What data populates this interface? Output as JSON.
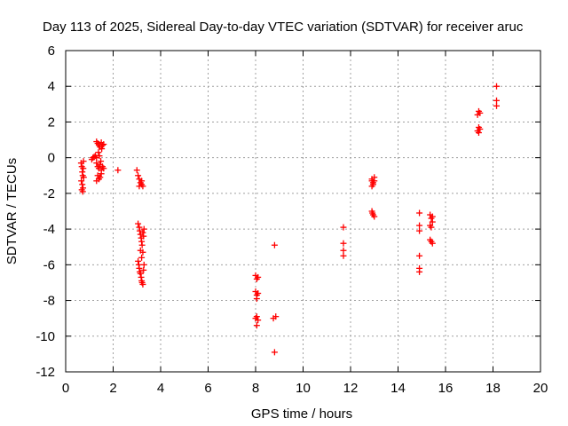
{
  "chart_data": {
    "type": "scatter",
    "title": "Day 113 of 2025, Sidereal Day-to-day VTEC variation (SDTVAR) for receiver aruc",
    "xlabel": "GPS time / hours",
    "ylabel": "SDTVAR / TECUs",
    "xlim": [
      0,
      20
    ],
    "ylim": [
      -12,
      6
    ],
    "xticks": [
      "0",
      "2",
      "4",
      "6",
      "8",
      "10",
      "12",
      "14",
      "16",
      "18",
      "20"
    ],
    "yticks": [
      "6",
      "4",
      "2",
      "0",
      "-2",
      "-4",
      "-6",
      "-8",
      "-10",
      "-12"
    ],
    "grid": true,
    "marker": "plus",
    "series": [
      {
        "name": "SDTVAR",
        "color": "#ff0000",
        "points": [
          [
            0.65,
            -0.3
          ],
          [
            0.68,
            -0.5
          ],
          [
            0.7,
            -0.8
          ],
          [
            0.72,
            -1.0
          ],
          [
            0.66,
            -1.3
          ],
          [
            0.7,
            -1.5
          ],
          [
            0.68,
            -1.8
          ],
          [
            0.72,
            -1.9
          ],
          [
            0.75,
            -0.2
          ],
          [
            0.74,
            -0.6
          ],
          [
            0.76,
            -1.1
          ],
          [
            0.73,
            -1.7
          ],
          [
            1.1,
            -0.1
          ],
          [
            1.15,
            0.0
          ],
          [
            1.2,
            0.05
          ],
          [
            1.25,
            0.1
          ],
          [
            1.3,
            0.0
          ],
          [
            1.3,
            0.9
          ],
          [
            1.35,
            0.8
          ],
          [
            1.4,
            0.7
          ],
          [
            1.45,
            0.6
          ],
          [
            1.5,
            0.85
          ],
          [
            1.55,
            0.7
          ],
          [
            1.6,
            0.75
          ],
          [
            1.3,
            -0.3
          ],
          [
            1.35,
            -0.5
          ],
          [
            1.4,
            -0.6
          ],
          [
            1.45,
            -0.4
          ],
          [
            1.5,
            -0.7
          ],
          [
            1.55,
            -0.5
          ],
          [
            1.6,
            -0.6
          ],
          [
            1.35,
            -1.0
          ],
          [
            1.4,
            -1.2
          ],
          [
            1.45,
            -1.1
          ],
          [
            1.5,
            -0.9
          ],
          [
            1.3,
            -1.3
          ],
          [
            1.38,
            0.3
          ],
          [
            1.42,
            0.1
          ],
          [
            1.48,
            -0.2
          ],
          [
            1.52,
            0.5
          ],
          [
            2.2,
            -0.7
          ],
          [
            3.0,
            -0.7
          ],
          [
            3.05,
            -1.0
          ],
          [
            3.1,
            -1.2
          ],
          [
            3.15,
            -1.4
          ],
          [
            3.2,
            -1.5
          ],
          [
            3.25,
            -1.6
          ],
          [
            3.1,
            -1.6
          ],
          [
            3.2,
            -1.3
          ],
          [
            3.05,
            -3.7
          ],
          [
            3.1,
            -3.9
          ],
          [
            3.12,
            -4.1
          ],
          [
            3.15,
            -4.3
          ],
          [
            3.18,
            -4.5
          ],
          [
            3.2,
            -4.7
          ],
          [
            3.22,
            -4.9
          ],
          [
            3.25,
            -4.2
          ],
          [
            3.28,
            -4.4
          ],
          [
            3.3,
            -4.0
          ],
          [
            3.15,
            -5.2
          ],
          [
            3.25,
            -5.3
          ],
          [
            3.05,
            -5.8
          ],
          [
            3.08,
            -6.0
          ],
          [
            3.1,
            -6.2
          ],
          [
            3.12,
            -6.4
          ],
          [
            3.15,
            -6.5
          ],
          [
            3.18,
            -6.7
          ],
          [
            3.2,
            -6.9
          ],
          [
            3.22,
            -7.0
          ],
          [
            3.25,
            -7.1
          ],
          [
            3.28,
            -6.3
          ],
          [
            3.3,
            -6.0
          ],
          [
            3.2,
            -5.6
          ],
          [
            8.0,
            -6.6
          ],
          [
            8.05,
            -6.8
          ],
          [
            8.1,
            -6.7
          ],
          [
            8.0,
            -7.5
          ],
          [
            8.05,
            -7.7
          ],
          [
            8.1,
            -7.6
          ],
          [
            8.05,
            -7.9
          ],
          [
            8.0,
            -9.0
          ],
          [
            8.05,
            -8.9
          ],
          [
            8.1,
            -9.1
          ],
          [
            8.05,
            -9.4
          ],
          [
            8.8,
            -4.9
          ],
          [
            8.75,
            -9.0
          ],
          [
            8.85,
            -8.9
          ],
          [
            8.8,
            -10.9
          ],
          [
            11.7,
            -3.9
          ],
          [
            11.7,
            -4.8
          ],
          [
            11.7,
            -5.2
          ],
          [
            11.7,
            -5.5
          ],
          [
            12.9,
            -1.2
          ],
          [
            12.95,
            -1.4
          ],
          [
            13.0,
            -1.3
          ],
          [
            12.9,
            -1.6
          ],
          [
            12.95,
            -1.5
          ],
          [
            13.0,
            -1.1
          ],
          [
            12.9,
            -1.3
          ],
          [
            12.9,
            -3.0
          ],
          [
            12.95,
            -3.2
          ],
          [
            13.0,
            -3.3
          ],
          [
            12.92,
            -3.1
          ],
          [
            14.9,
            -3.1
          ],
          [
            14.9,
            -3.8
          ],
          [
            14.9,
            -4.1
          ],
          [
            14.9,
            -5.5
          ],
          [
            14.9,
            -6.2
          ],
          [
            14.9,
            -6.4
          ],
          [
            15.35,
            -3.2
          ],
          [
            15.4,
            -3.4
          ],
          [
            15.45,
            -3.6
          ],
          [
            15.35,
            -3.8
          ],
          [
            15.4,
            -3.9
          ],
          [
            15.45,
            -3.3
          ],
          [
            15.35,
            -4.6
          ],
          [
            15.4,
            -4.7
          ],
          [
            15.45,
            -4.8
          ],
          [
            17.35,
            2.4
          ],
          [
            17.4,
            2.6
          ],
          [
            17.45,
            2.5
          ],
          [
            17.35,
            1.5
          ],
          [
            17.4,
            1.7
          ],
          [
            17.45,
            1.6
          ],
          [
            17.4,
            1.4
          ],
          [
            18.15,
            4.0
          ],
          [
            18.15,
            3.2
          ],
          [
            18.15,
            2.9
          ]
        ]
      }
    ]
  }
}
